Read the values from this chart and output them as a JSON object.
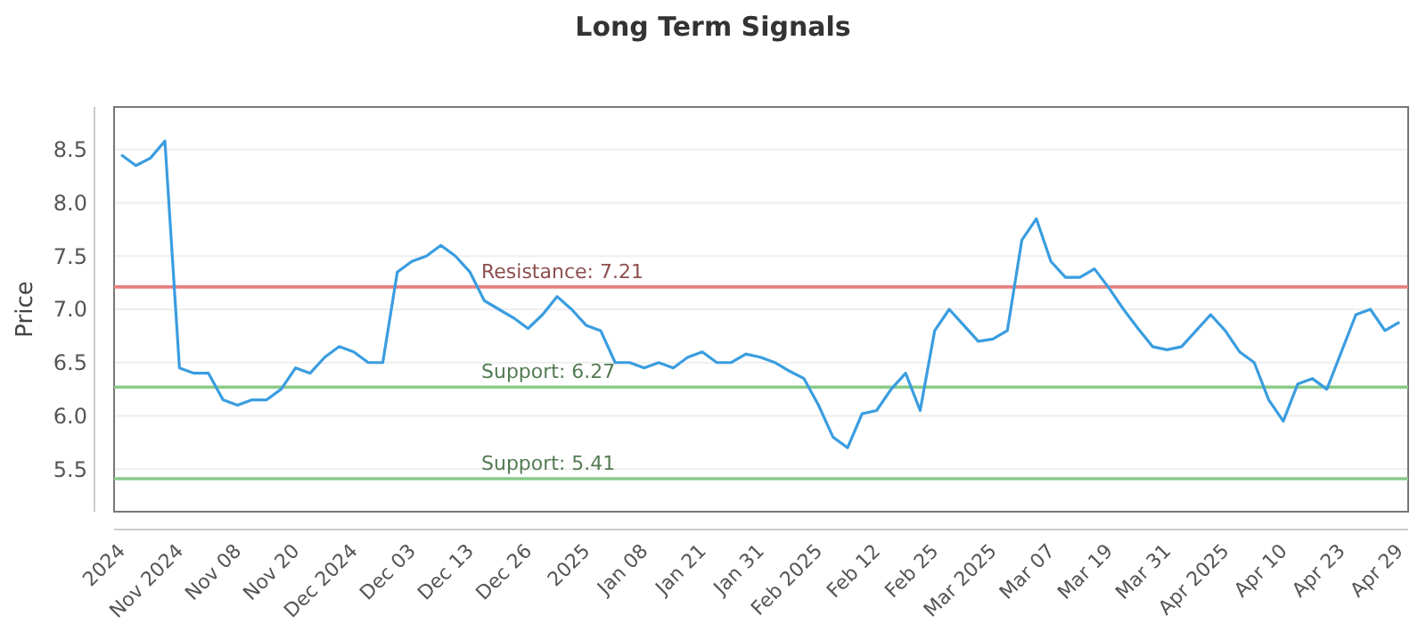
{
  "chart_data": {
    "type": "line",
    "title": "Long Term Signals",
    "ylabel": "Price",
    "categories": [
      "2024",
      null,
      null,
      null,
      "Nov 2024",
      null,
      null,
      null,
      "Nov 08",
      null,
      null,
      null,
      "Nov 20",
      null,
      null,
      null,
      "Dec 2024",
      null,
      null,
      null,
      "Dec 03",
      null,
      null,
      null,
      "Dec 13",
      null,
      null,
      null,
      "Dec 26",
      null,
      null,
      null,
      "2025",
      null,
      null,
      null,
      "Jan 08",
      null,
      null,
      null,
      "Jan 21",
      null,
      null,
      null,
      "Jan 31",
      null,
      null,
      null,
      "Feb 2025",
      null,
      null,
      null,
      "Feb 12",
      null,
      null,
      null,
      "Feb 25",
      null,
      null,
      null,
      "Mar 2025",
      null,
      null,
      null,
      "Mar 07",
      null,
      null,
      null,
      "Mar 19",
      null,
      null,
      null,
      "Mar 31",
      null,
      null,
      null,
      "Apr 2025",
      null,
      null,
      null,
      "Apr 10",
      null,
      null,
      null,
      "Apr 23",
      null,
      null,
      null,
      "Apr 29"
    ],
    "series": [
      {
        "color": "#3a9de0",
        "values": [
          8.45,
          8.35,
          8.42,
          8.58,
          6.45,
          6.4,
          6.4,
          6.15,
          6.1,
          6.15,
          6.15,
          6.25,
          6.45,
          6.4,
          6.55,
          6.65,
          6.6,
          6.5,
          6.5,
          7.35,
          7.45,
          7.5,
          7.6,
          7.5,
          7.35,
          7.08,
          7.0,
          6.92,
          6.82,
          6.95,
          7.12,
          7.0,
          6.85,
          6.8,
          6.5,
          6.5,
          6.45,
          6.5,
          6.45,
          6.55,
          6.6,
          6.5,
          6.5,
          6.58,
          6.55,
          6.5,
          6.42,
          6.35,
          6.1,
          5.8,
          5.7,
          6.02,
          6.05,
          6.25,
          6.4,
          6.05,
          6.8,
          7.0,
          6.85,
          6.7,
          6.72,
          6.8,
          7.65,
          7.85,
          7.45,
          7.3,
          7.3,
          7.38,
          7.2,
          7.0,
          6.82,
          6.65,
          6.62,
          6.65,
          6.8,
          6.95,
          6.8,
          6.6,
          6.5,
          6.15,
          5.95,
          6.3,
          6.35,
          6.25,
          6.6,
          6.95,
          7.0,
          6.8,
          6.88
        ]
      }
    ],
    "ylim": [
      5.1,
      8.9
    ],
    "yticks": [
      5.5,
      {
        "value": 6,
        "label": "6.0"
      },
      6.5,
      {
        "value": 7,
        "label": "7.0"
      },
      7.5,
      {
        "value": 8,
        "label": "8.0"
      },
      8.5
    ],
    "grid": "y",
    "marker": "none",
    "line_style": "solid",
    "ref_lines": [
      {
        "axis": "y",
        "value": 7.21,
        "label": "Resistance: 7.21",
        "color": "#e88080"
      },
      {
        "axis": "y",
        "value": 6.27,
        "label": "Support: 6.27",
        "color": "#8acb8a"
      },
      {
        "axis": "y",
        "value": 5.41,
        "label": "Support: 5.41",
        "color": "#8acb8a"
      }
    ]
  }
}
